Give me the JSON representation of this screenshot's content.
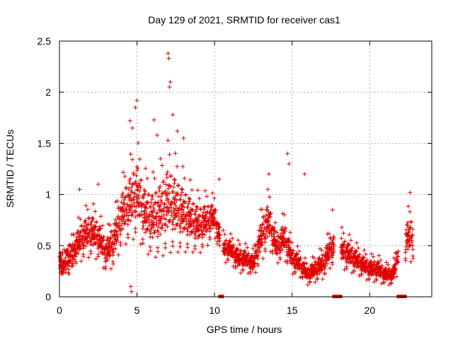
{
  "chart_data": {
    "type": "scatter",
    "title": "Day 129 of 2021, SRMTID for receiver cas1",
    "xlabel": "GPS time / hours",
    "ylabel": "SRMTID / TECUs",
    "xlim": [
      0,
      24
    ],
    "ylim": [
      0,
      2.5
    ],
    "xticks": [
      0,
      5,
      10,
      15,
      20
    ],
    "xtick_labels": [
      "0",
      "5",
      "10",
      "15",
      "20"
    ],
    "yticks": [
      0,
      0.5,
      1,
      1.5,
      2,
      2.5
    ],
    "ytick_labels": [
      "0",
      "0.5",
      "1",
      "1.5",
      "2",
      "2.5"
    ],
    "grid": true,
    "marker_color": "#e00000",
    "series": [
      {
        "name": "SRMTID",
        "marker": "plus",
        "profile_note": "dense cloud of points; envelope below",
        "x": [
          0,
          0.5,
          1,
          1.5,
          2,
          2.5,
          3,
          3.5,
          4,
          4.5,
          5,
          5.5,
          6,
          6.5,
          7,
          7.5,
          8,
          8.5,
          9,
          9.5,
          10,
          10.5,
          11,
          11.5,
          12,
          12.5,
          13,
          13.5,
          14,
          14.5,
          15,
          15.5,
          16,
          16.5,
          17,
          17.5,
          18,
          18.5,
          19,
          19.5,
          20,
          20.5,
          21,
          21.5,
          22,
          22.5
        ],
        "y": [
          0.3,
          0.35,
          0.45,
          0.55,
          0.6,
          0.55,
          0.4,
          0.5,
          0.75,
          0.85,
          0.95,
          0.75,
          0.7,
          0.75,
          0.85,
          0.8,
          0.75,
          0.7,
          0.65,
          0.7,
          0.75,
          0.45,
          0.45,
          0.35,
          0.35,
          0.3,
          0.55,
          0.7,
          0.45,
          0.55,
          0.35,
          0.3,
          0.2,
          0.25,
          0.3,
          0.45,
          0.45,
          0.4,
          0.35,
          0.3,
          0.25,
          0.25,
          0.2,
          0.2,
          0.45,
          0.55
        ],
        "spread": [
          0.1,
          0.12,
          0.15,
          0.18,
          0.2,
          0.18,
          0.15,
          0.2,
          0.25,
          0.3,
          0.35,
          0.3,
          0.3,
          0.35,
          0.4,
          0.35,
          0.3,
          0.25,
          0.22,
          0.2,
          0.15,
          0.12,
          0.1,
          0.12,
          0.1,
          0.1,
          0.2,
          0.22,
          0.12,
          0.18,
          0.12,
          0.1,
          0.08,
          0.1,
          0.12,
          0.15,
          0.15,
          0.14,
          0.12,
          0.1,
          0.1,
          0.1,
          0.08,
          0.08,
          0.15,
          0.2
        ],
        "outliers": [
          [
            4.9,
            1.85
          ],
          [
            5.0,
            1.92
          ],
          [
            6.1,
            1.73
          ],
          [
            6.3,
            1.58
          ],
          [
            7.0,
            2.38
          ],
          [
            7.05,
            2.33
          ],
          [
            7.15,
            2.1
          ],
          [
            7.1,
            2.05
          ],
          [
            7.3,
            1.78
          ],
          [
            7.6,
            1.62
          ],
          [
            8.0,
            1.55
          ],
          [
            4.55,
            1.72
          ],
          [
            4.7,
            1.65
          ],
          [
            10.3,
            1.15
          ],
          [
            13.5,
            1.2
          ],
          [
            14.7,
            1.4
          ],
          [
            14.8,
            1.3
          ],
          [
            15.8,
            1.2
          ],
          [
            17.6,
            0.85
          ],
          [
            22.6,
            1.02
          ],
          [
            4.6,
            0.1
          ],
          [
            4.65,
            0.05
          ],
          [
            1.3,
            1.05
          ],
          [
            2.5,
            1.1
          ]
        ],
        "gaps": [
          [
            10.35,
            10.55
          ],
          [
            17.7,
            18.15
          ],
          [
            21.85,
            22.3
          ]
        ]
      }
    ]
  }
}
